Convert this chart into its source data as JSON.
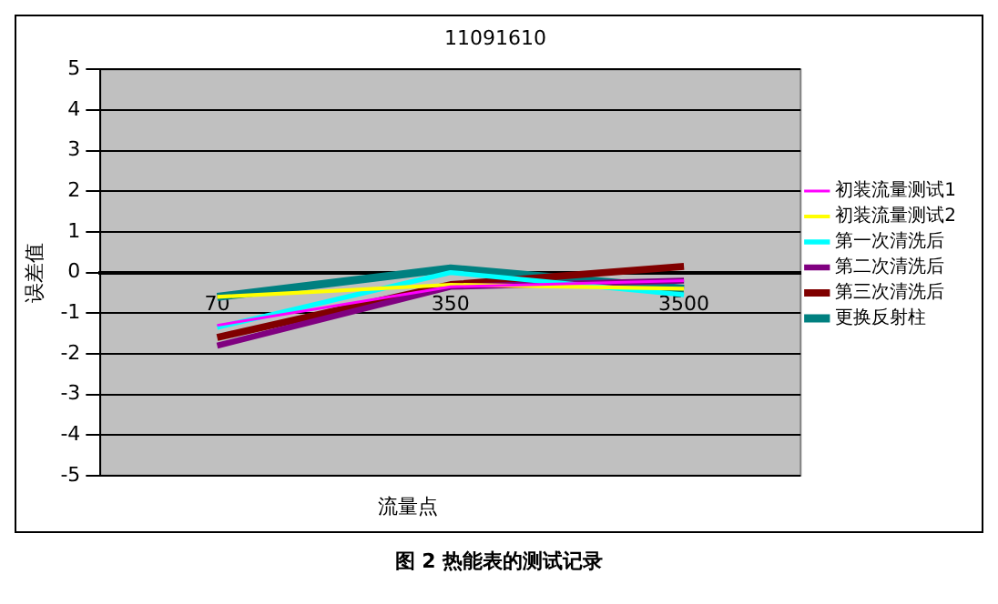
{
  "chart_data": {
    "type": "line",
    "title": "11091610",
    "xlabel": "流量点",
    "ylabel": "误差值",
    "categories": [
      "70",
      "350",
      "3500"
    ],
    "series": [
      {
        "name": "初装流量测试1",
        "color": "#ff00ff",
        "values": [
          -1.3,
          -0.35,
          -0.2
        ]
      },
      {
        "name": "初装流量测试2",
        "color": "#ffff00",
        "values": [
          -0.6,
          -0.3,
          -0.4
        ]
      },
      {
        "name": "第一次清洗后",
        "color": "#00ffff",
        "values": [
          -1.35,
          0,
          -0.55
        ]
      },
      {
        "name": "第二次清洗后",
        "color": "#800080",
        "values": [
          -1.8,
          -0.35,
          -0.2
        ]
      },
      {
        "name": "第三次清洗后",
        "color": "#800000",
        "values": [
          -1.6,
          -0.3,
          0.15
        ]
      },
      {
        "name": "更换反射柱",
        "color": "#008080",
        "values": [
          -0.6,
          0.1,
          -0.4
        ]
      }
    ],
    "ylim": [
      -5,
      5
    ],
    "yticks": [
      -5,
      -4,
      -3,
      -2,
      -1,
      0,
      1,
      2,
      3,
      4,
      5
    ],
    "grid": "y",
    "legend": "right",
    "marker": "none",
    "line_style": "solid",
    "annotations": [
      "图 2 热能表的测试记录"
    ]
  }
}
